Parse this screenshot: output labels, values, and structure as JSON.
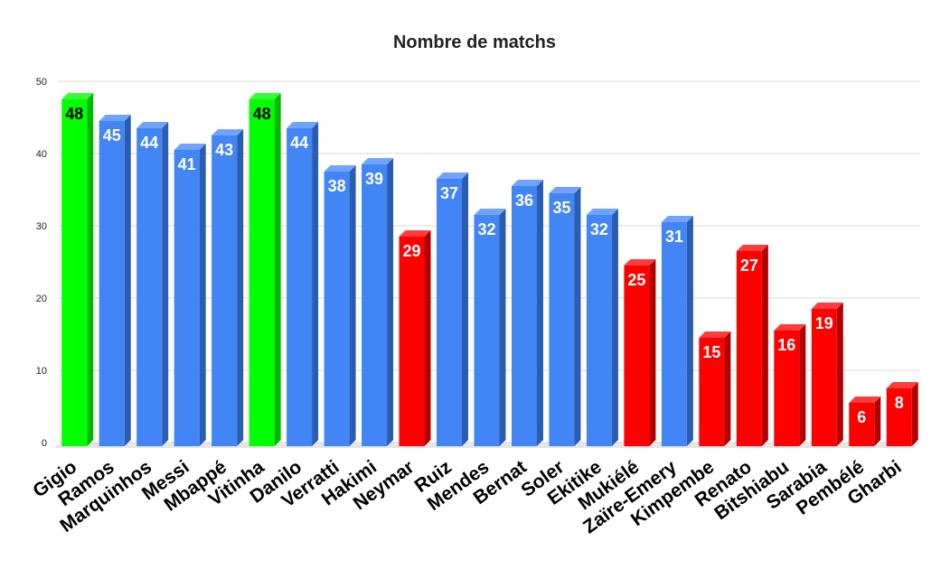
{
  "chart_data": {
    "type": "bar",
    "title": "Nombre de matchs",
    "xlabel": "",
    "ylabel": "",
    "ylim": [
      0,
      50
    ],
    "yticks": [
      0,
      10,
      20,
      30,
      40,
      50
    ],
    "grid": true,
    "legend": "none",
    "style": "3d",
    "categories": [
      "Gigio",
      "Ramos",
      "Marquinhos",
      "Messi",
      "Mbappé",
      "Vitinha",
      "Danilo",
      "Verratti",
      "Hakimi",
      "Neymar",
      "Ruiz",
      "Mendes",
      "Bernat",
      "Soler",
      "Ekitike",
      "Mukiélé",
      "Zaïre-Emery",
      "Kimpembe",
      "Renato",
      "Bitshiabu",
      "Sarabia",
      "Pembélé",
      "Gharbi"
    ],
    "values": [
      48,
      45,
      44,
      41,
      43,
      48,
      44,
      38,
      39,
      29,
      37,
      32,
      36,
      35,
      32,
      25,
      31,
      15,
      27,
      16,
      19,
      6,
      8
    ],
    "colors": [
      "green",
      "blue",
      "blue",
      "blue",
      "blue",
      "green",
      "blue",
      "blue",
      "blue",
      "red",
      "blue",
      "blue",
      "blue",
      "blue",
      "blue",
      "red",
      "blue",
      "red",
      "red",
      "red",
      "red",
      "red",
      "red"
    ]
  },
  "palette": {
    "green": {
      "front": "#00ff00",
      "side": "#00b800",
      "top": "#33ff33",
      "label": "#000000"
    },
    "blue": {
      "front": "#4285f4",
      "side": "#2a5db0",
      "top": "#6fa3ff",
      "label": "#ffffff"
    },
    "red": {
      "front": "#ff0000",
      "side": "#b00000",
      "top": "#ff3b3b",
      "label": "#ffffff"
    },
    "grid": "#d9d9d9",
    "floor": "#e6e6e6"
  }
}
